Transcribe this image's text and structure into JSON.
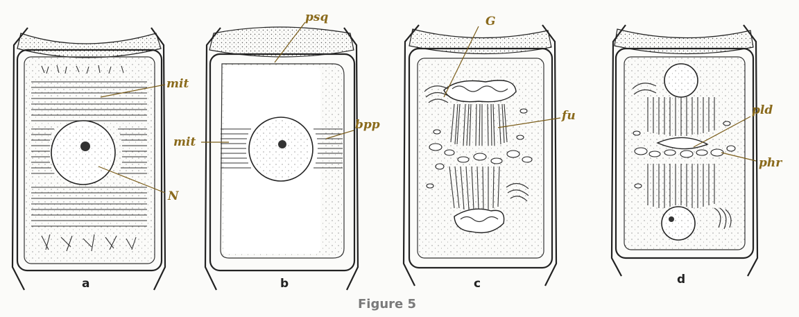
{
  "caption": "Figure 5",
  "panels": [
    {
      "letter": "a",
      "labels": [
        "mit",
        "N"
      ]
    },
    {
      "letter": "b",
      "labels": [
        "psq",
        "mit",
        "bpp"
      ]
    },
    {
      "letter": "c",
      "labels": [
        "G",
        "fu"
      ]
    },
    {
      "letter": "d",
      "labels": [
        "pld",
        "phr"
      ]
    }
  ],
  "colors": {
    "label": "#8a6a1c",
    "ink": "#222222",
    "caption": "#7a7a7a"
  }
}
